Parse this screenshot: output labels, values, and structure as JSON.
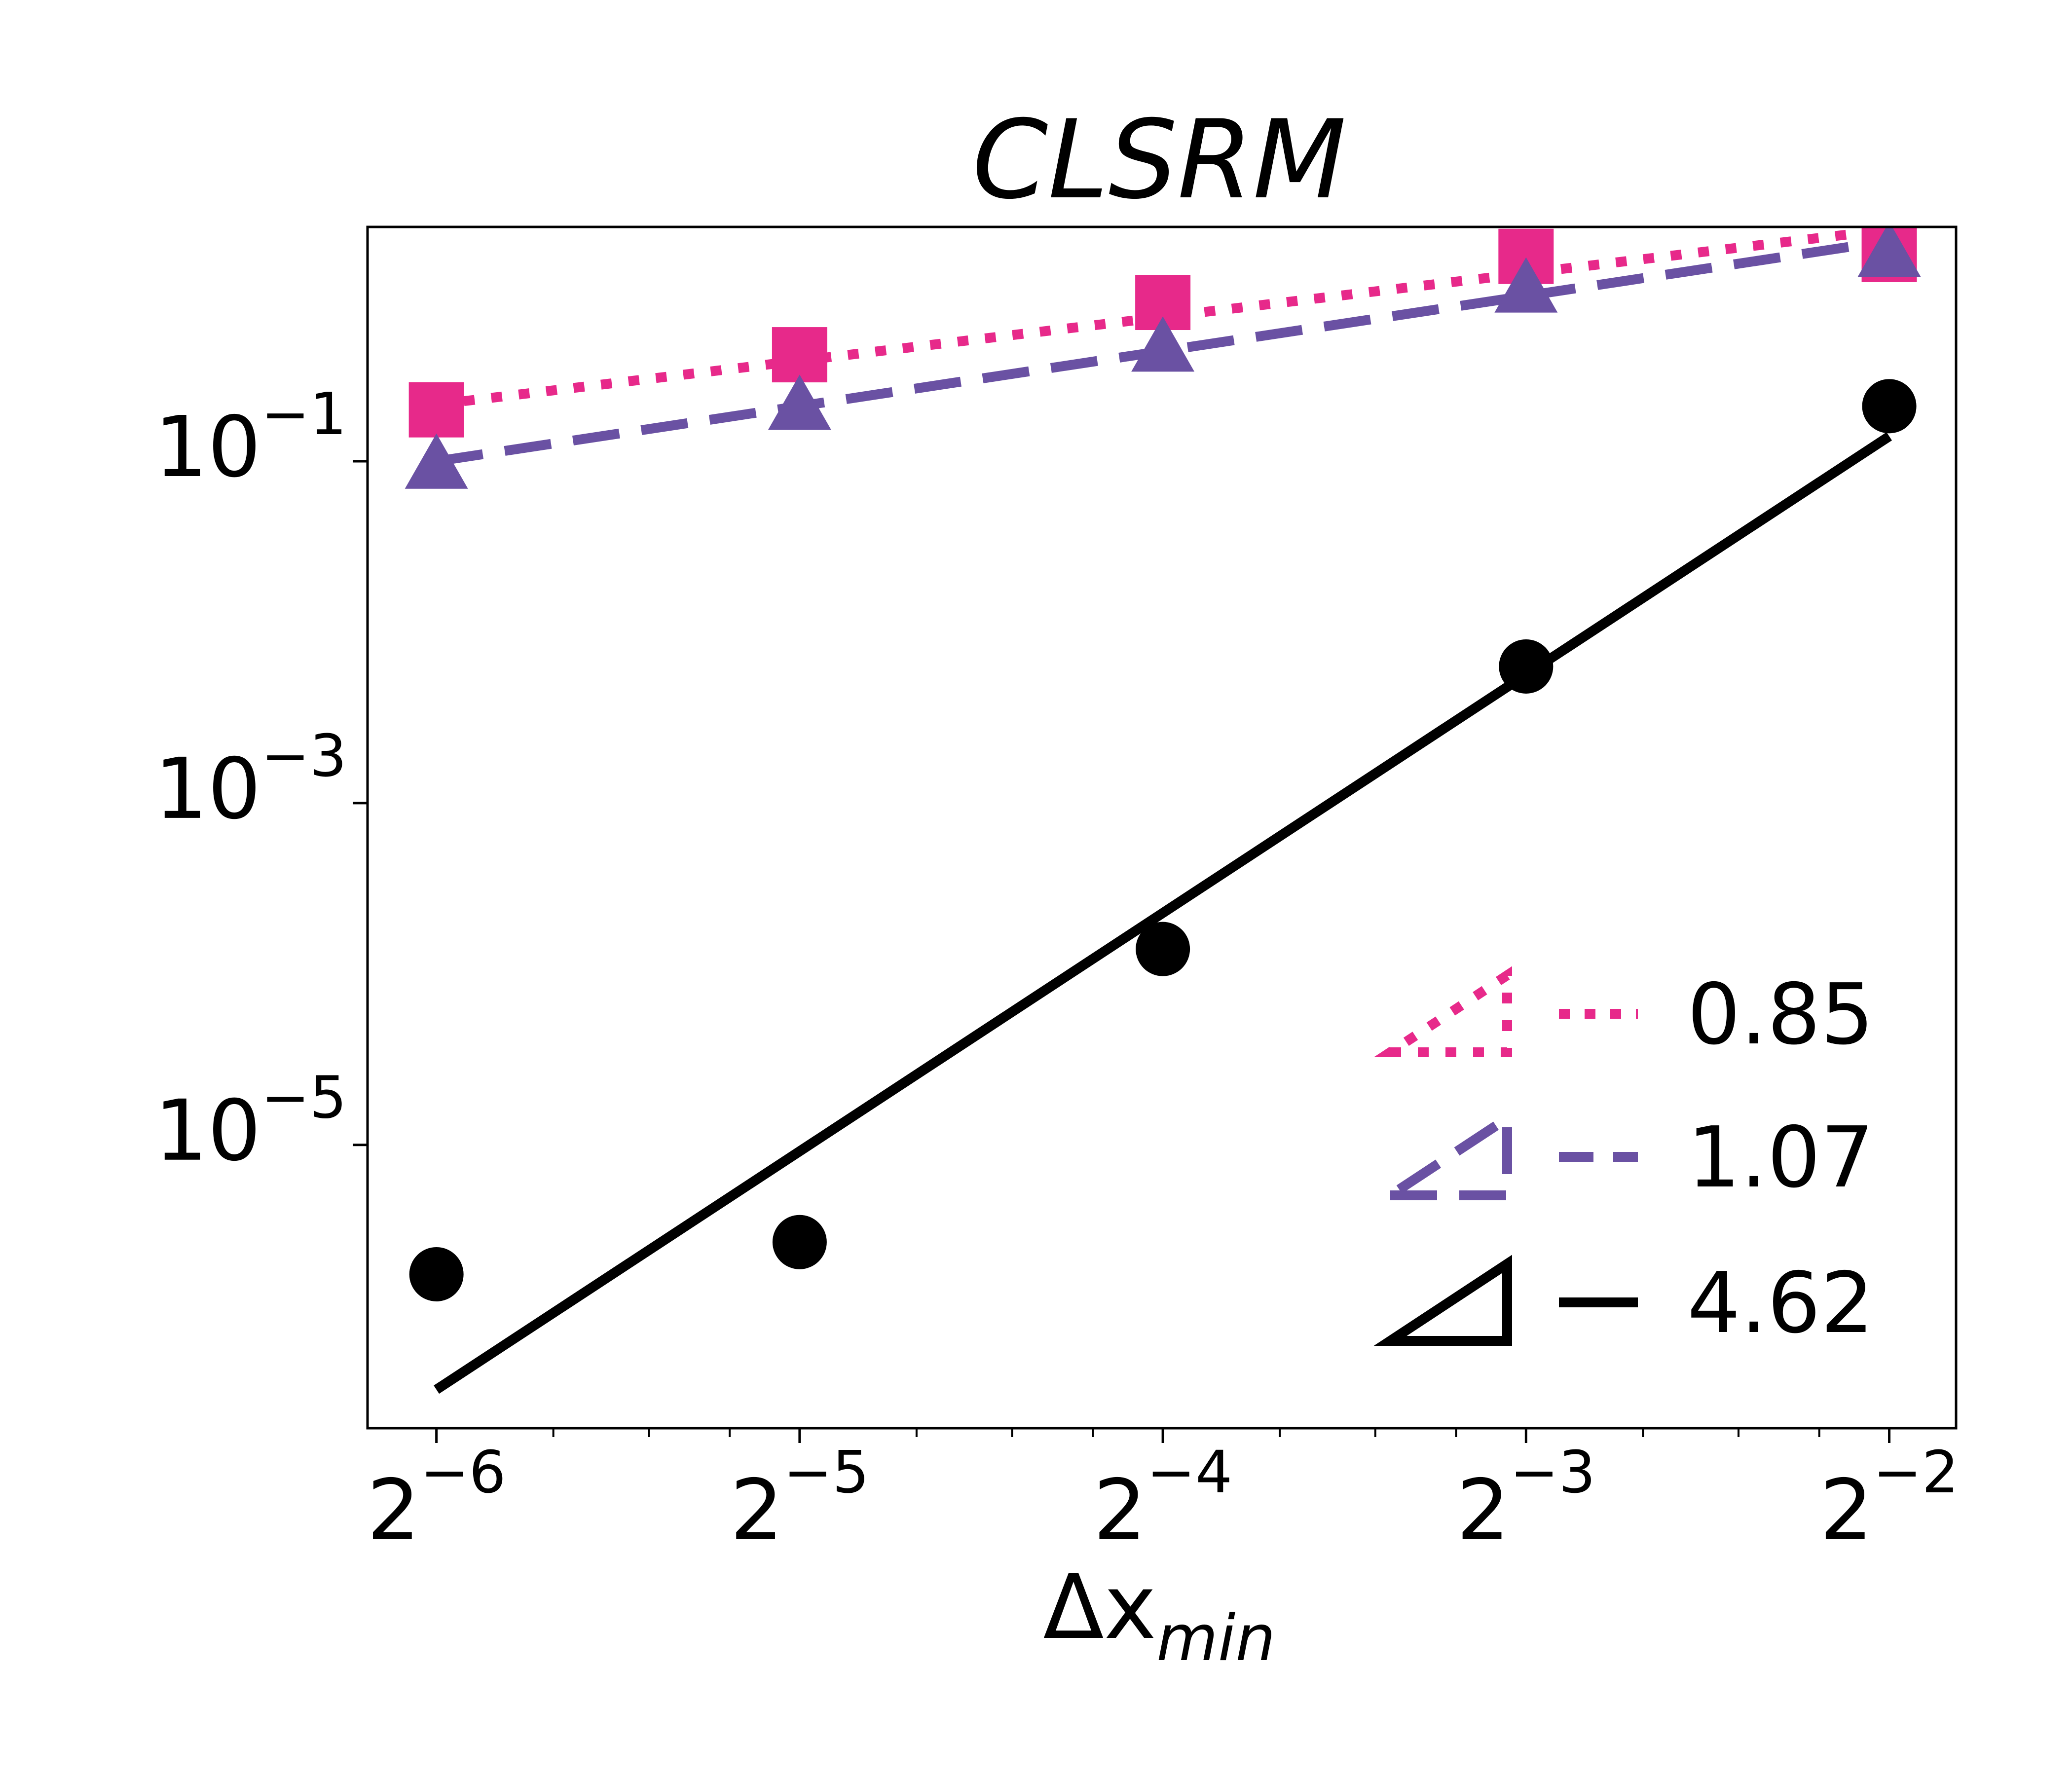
{
  "chart_data": {
    "type": "line",
    "title": "CLSRM",
    "xlabel": {
      "base": "Δx",
      "subscript": "min"
    },
    "xscale": "log2",
    "yscale": "log10",
    "xlim": [
      0.0137,
      0.284
    ],
    "ylim": [
      2.2e-07,
      2.35
    ],
    "x_ticks": [
      {
        "base": "2",
        "exp": "−6",
        "value": 0.015625
      },
      {
        "base": "2",
        "exp": "−5",
        "value": 0.03125
      },
      {
        "base": "2",
        "exp": "−4",
        "value": 0.0625
      },
      {
        "base": "2",
        "exp": "−3",
        "value": 0.125
      },
      {
        "base": "2",
        "exp": "−2",
        "value": 0.25
      }
    ],
    "y_ticks": [
      {
        "base": "10",
        "exp": "−1",
        "value": 0.1
      },
      {
        "base": "10",
        "exp": "−3",
        "value": 0.001
      },
      {
        "base": "10",
        "exp": "−5",
        "value": 1e-05
      }
    ],
    "series": [
      {
        "name": "pink-squares",
        "color": "#e7298a",
        "marker": "square",
        "line_style": "dotted",
        "x": [
          0.015625,
          0.03125,
          0.0625,
          0.125,
          0.25
        ],
        "y": [
          0.2,
          0.42,
          0.85,
          1.58,
          1.62
        ],
        "fit_slope_label": "0.85",
        "fit_endpoints": {
          "x": [
            0.015625,
            0.25
          ],
          "y": [
            0.215,
            2.27
          ]
        }
      },
      {
        "name": "purple-triangles",
        "color": "#6a51a3",
        "marker": "triangle",
        "line_style": "dashed",
        "x": [
          0.015625,
          0.03125,
          0.0625,
          0.125,
          0.25
        ],
        "y": [
          0.095,
          0.21,
          0.46,
          1.02,
          1.65
        ],
        "fit_slope_label": "1.07",
        "fit_endpoints": {
          "x": [
            0.015625,
            0.25
          ],
          "y": [
            0.1,
            1.95
          ]
        }
      },
      {
        "name": "black-circles",
        "color": "#000000",
        "marker": "circle",
        "line_style": "solid",
        "x": [
          0.015625,
          0.03125,
          0.0625,
          0.125,
          0.25
        ],
        "y": [
          1.75e-06,
          2.7e-06,
          0.00014,
          0.0063,
          0.21
        ],
        "fit_slope_label": "4.62",
        "fit_endpoints": {
          "x": [
            0.015625,
            0.25
          ],
          "y": [
            3.7e-07,
            0.14
          ]
        }
      }
    ],
    "legend": {
      "position": "lower right",
      "entries": [
        "0.85",
        "1.07",
        "4.62"
      ]
    },
    "grid": false
  }
}
